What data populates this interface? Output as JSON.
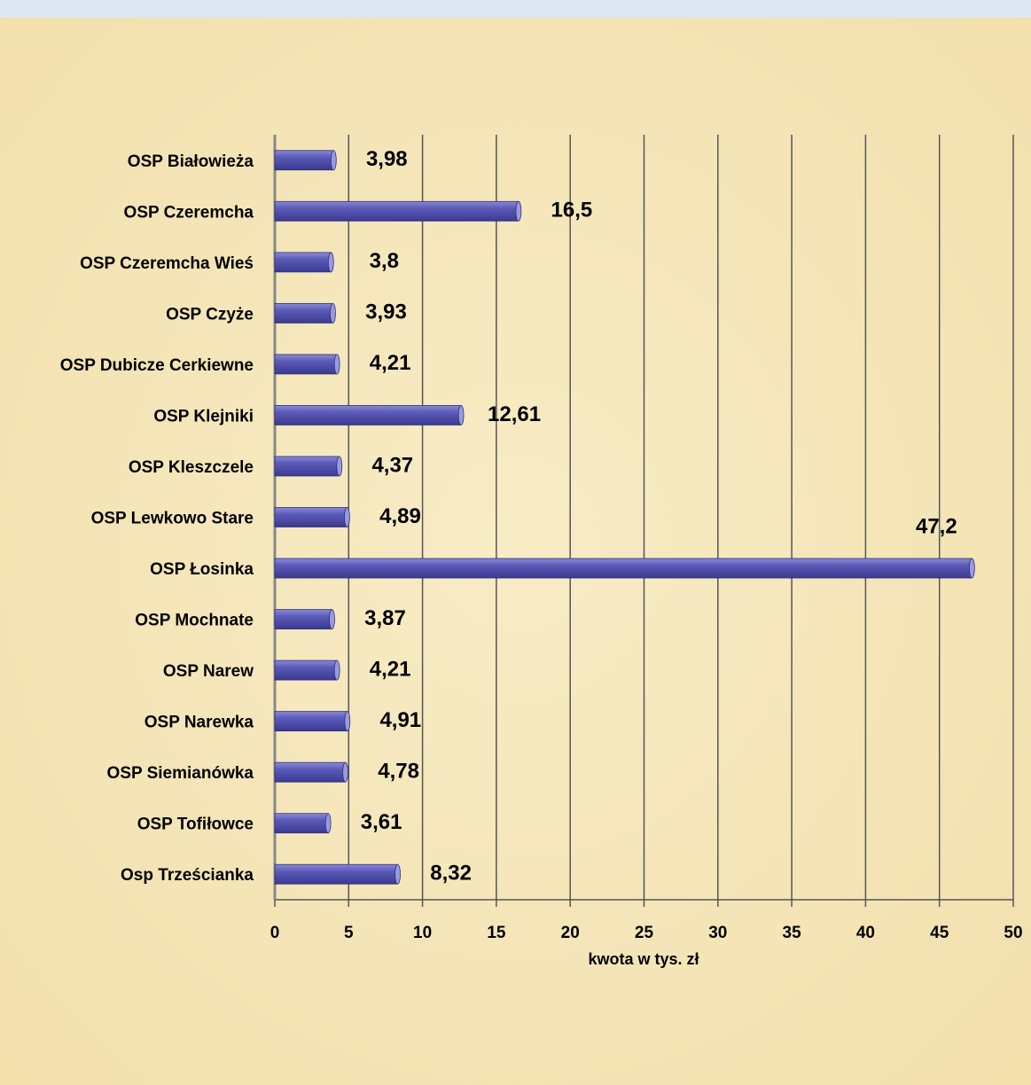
{
  "chart_data": {
    "type": "bar",
    "orientation": "horizontal",
    "categories": [
      "OSP Białowieża",
      "OSP Czeremcha",
      "OSP Czeremcha Wieś",
      "OSP Czyże",
      "OSP Dubicze Cerkiewne",
      "OSP Klejniki",
      "OSP Kleszczele",
      "OSP Lewkowo Stare",
      "OSP Łosinka",
      "OSP Mochnate",
      "OSP Narew",
      "OSP Narewka",
      "OSP Siemianówka",
      "OSP Tofiłowce",
      "Osp Trześcianka"
    ],
    "values": [
      3.98,
      16.5,
      3.8,
      3.93,
      4.21,
      12.61,
      4.37,
      4.89,
      47.2,
      3.87,
      4.21,
      4.91,
      4.78,
      3.61,
      8.32
    ],
    "value_labels": [
      "3,98",
      "16,5",
      "3,8",
      "3,93",
      "4,21",
      "12,61",
      "4,37",
      "4,89",
      "47,2",
      "3,87",
      "4,21",
      "4,91",
      "4,78",
      "3,61",
      "8,32"
    ],
    "color": "#5b5bb8",
    "xlabel": "kwota w tys. zł",
    "xlim": [
      0,
      50
    ],
    "xticks": [
      0,
      5,
      10,
      15,
      20,
      25,
      30,
      35,
      40,
      45,
      50
    ],
    "grid": true
  }
}
